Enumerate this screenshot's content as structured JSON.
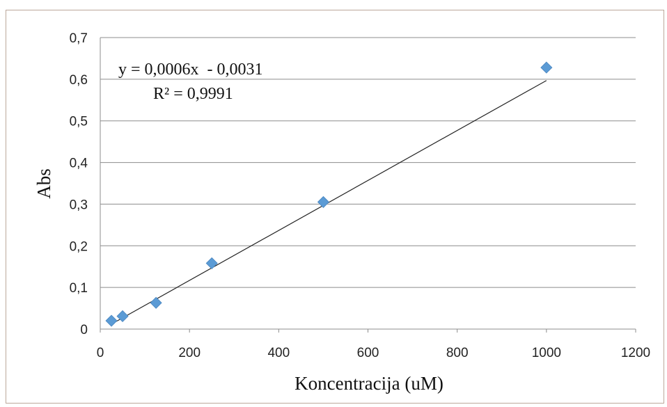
{
  "chart_data": {
    "type": "scatter",
    "title": "",
    "xlabel": "Koncentracija (uM)",
    "ylabel": "Abs",
    "xlim": [
      0,
      1200
    ],
    "ylim": [
      0,
      0.7
    ],
    "x_ticks": [
      0,
      200,
      400,
      600,
      800,
      1000,
      1200
    ],
    "y_ticks": [
      0,
      0.1,
      0.2,
      0.3,
      0.4,
      0.5,
      0.6,
      0.7
    ],
    "x_tick_labels": [
      "0",
      "200",
      "400",
      "600",
      "800",
      "1000",
      "1200"
    ],
    "y_tick_labels": [
      "0",
      "0,1",
      "0,2",
      "0,3",
      "0,4",
      "0,5",
      "0,6",
      "0,7"
    ],
    "grid": "horizontal",
    "series": [
      {
        "marker": "diamond",
        "color": "#5b9bd5",
        "points": [
          {
            "x": 25,
            "y": 0.02
          },
          {
            "x": 50,
            "y": 0.031
          },
          {
            "x": 125,
            "y": 0.063
          },
          {
            "x": 250,
            "y": 0.158
          },
          {
            "x": 500,
            "y": 0.305
          },
          {
            "x": 1000,
            "y": 0.628
          }
        ]
      }
    ],
    "trendline": {
      "type": "linear",
      "slope": 0.0006,
      "intercept": -0.0031,
      "x_range": [
        25,
        1000
      ],
      "color": "#222222",
      "equation_label": "y = 0,0006x  - 0,0031",
      "r2_label": "R² = 0,9991"
    },
    "colors": {
      "grid": "#8c8c8c",
      "axis": "#8c8c8c",
      "frame": "#bba79a"
    }
  }
}
